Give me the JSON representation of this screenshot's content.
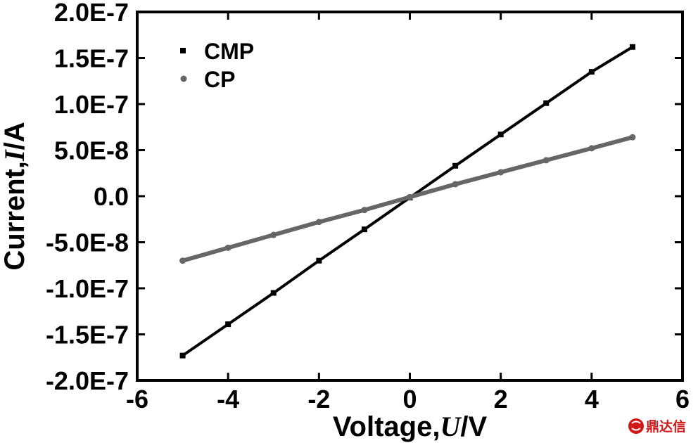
{
  "chart_data": {
    "type": "scatter",
    "x": [
      -5,
      -4,
      -3,
      -2,
      -1,
      0,
      1,
      2,
      3,
      4,
      4.9
    ],
    "xlabel_parts": [
      "Voltage,",
      "U",
      "/V"
    ],
    "ylabel_parts": [
      "Current,",
      "I",
      "/A"
    ],
    "xlim": [
      -6,
      6
    ],
    "ylim": [
      -2e-07,
      2e-07
    ],
    "x_ticks": [
      -6,
      -4,
      -2,
      0,
      2,
      4,
      6
    ],
    "x_tick_labels": [
      "-6",
      "-4",
      "-2",
      "0",
      "2",
      "4",
      "6"
    ],
    "y_ticks": [
      -2e-07,
      -1.5e-07,
      -1e-07,
      -5e-08,
      0,
      5e-08,
      1e-07,
      1.5e-07,
      2e-07
    ],
    "y_tick_labels": [
      "-2.0E-7",
      "-1.5E-7",
      "-1.0E-7",
      "-5.0E-8",
      "0.0",
      "5.0E-8",
      "1.0E-7",
      "1.5E-7",
      "2.0E-7"
    ],
    "series": [
      {
        "name": "CMP",
        "color": "#000000",
        "marker": "square",
        "values": [
          -1.73e-07,
          -1.39e-07,
          -1.05e-07,
          -7e-08,
          -3.6e-08,
          -1.5e-09,
          3.3e-08,
          6.7e-08,
          1.01e-07,
          1.35e-07,
          1.62e-07
        ]
      },
      {
        "name": "CP",
        "color": "#666666",
        "marker": "circle",
        "values": [
          -7e-08,
          -5.6e-08,
          -4.2e-08,
          -2.8e-08,
          -1.5e-08,
          -1e-09,
          1.3e-08,
          2.6e-08,
          3.9e-08,
          5.2e-08,
          6.4e-08
        ]
      }
    ],
    "legend_position": "top-left",
    "grid": false
  },
  "watermark": {
    "text": "鼎达信",
    "color": "#d01818"
  }
}
